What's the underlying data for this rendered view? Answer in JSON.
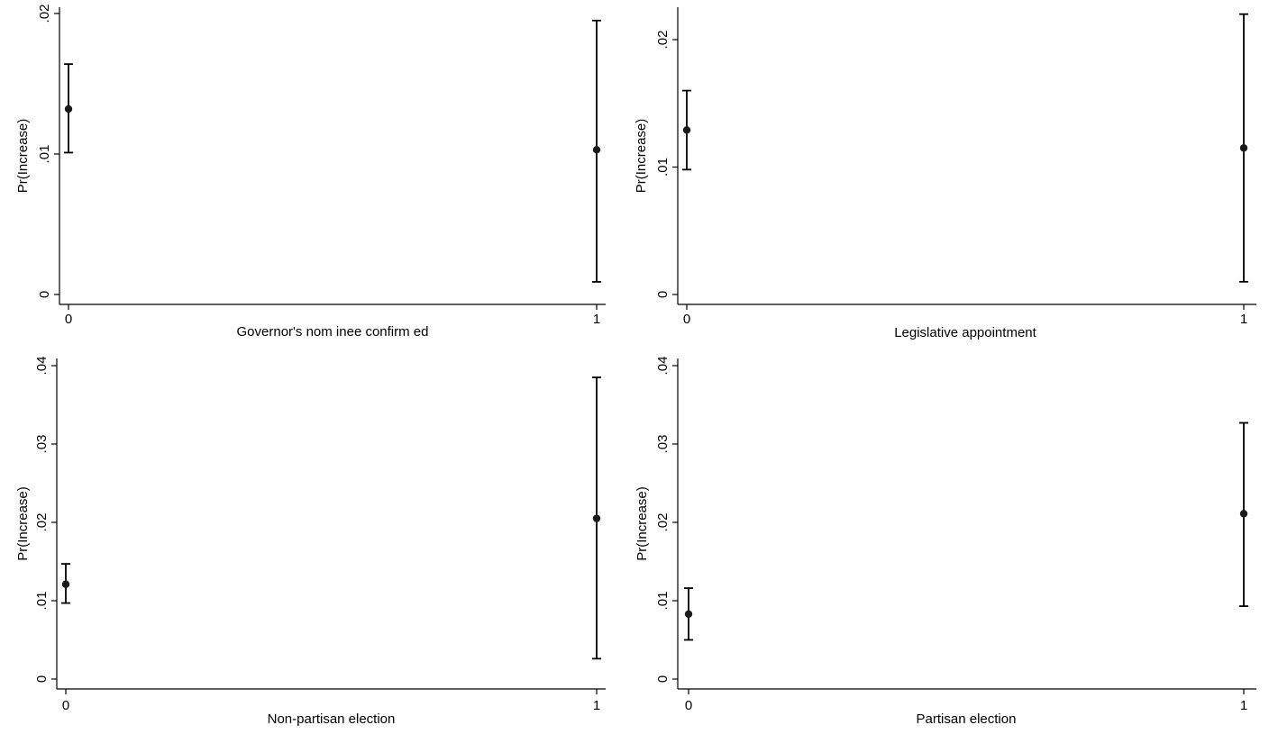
{
  "chart_data": [
    {
      "type": "scatter",
      "subtype": "point-with-error-bars",
      "xlabel": "Governor's nom inee confirm ed",
      "ylabel": "Pr(Increase)",
      "x_ticks": [
        "0",
        "1"
      ],
      "y_ticks": [
        ".02",
        ".01",
        "0"
      ],
      "y_tick_values": [
        0.02,
        0.01,
        0
      ],
      "ylim": [
        0,
        0.02
      ],
      "grid": false,
      "points": [
        {
          "x": 0,
          "y": 0.0132,
          "lower": 0.0101,
          "upper": 0.0164
        },
        {
          "x": 1,
          "y": 0.0103,
          "lower": 0.0009,
          "upper": 0.0195
        }
      ]
    },
    {
      "type": "scatter",
      "subtype": "point-with-error-bars",
      "xlabel": "Legislative appointment",
      "ylabel": "Pr(Increase)",
      "x_ticks": [
        "0",
        "1"
      ],
      "y_ticks": [
        ".02",
        ".01",
        "0"
      ],
      "y_tick_values": [
        0.02,
        0.01,
        0
      ],
      "ylim": [
        0,
        0.022
      ],
      "grid": false,
      "points": [
        {
          "x": 0,
          "y": 0.0129,
          "lower": 0.0098,
          "upper": 0.016
        },
        {
          "x": 1,
          "y": 0.0115,
          "lower": 0.001,
          "upper": 0.022
        }
      ]
    },
    {
      "type": "scatter",
      "subtype": "point-with-error-bars",
      "xlabel": "Non-partisan election",
      "ylabel": "Pr(Increase)",
      "x_ticks": [
        "0",
        "1"
      ],
      "y_ticks": [
        ".04",
        ".03",
        ".02",
        ".01",
        "0"
      ],
      "y_tick_values": [
        0.04,
        0.03,
        0.02,
        0.01,
        0
      ],
      "ylim": [
        0,
        0.04
      ],
      "grid": false,
      "points": [
        {
          "x": 0,
          "y": 0.0121,
          "lower": 0.0097,
          "upper": 0.0147
        },
        {
          "x": 1,
          "y": 0.0205,
          "lower": 0.0026,
          "upper": 0.0385
        }
      ]
    },
    {
      "type": "scatter",
      "subtype": "point-with-error-bars",
      "xlabel": "Partisan election",
      "ylabel": "Pr(Increase)",
      "x_ticks": [
        "0",
        "1"
      ],
      "y_ticks": [
        ".04",
        ".03",
        ".02",
        ".01",
        "0"
      ],
      "y_tick_values": [
        0.04,
        0.03,
        0.02,
        0.01,
        0
      ],
      "ylim": [
        0,
        0.04
      ],
      "grid": false,
      "points": [
        {
          "x": 0,
          "y": 0.0083,
          "lower": 0.005,
          "upper": 0.0116
        },
        {
          "x": 1,
          "y": 0.0211,
          "lower": 0.0093,
          "upper": 0.0327
        }
      ]
    }
  ]
}
